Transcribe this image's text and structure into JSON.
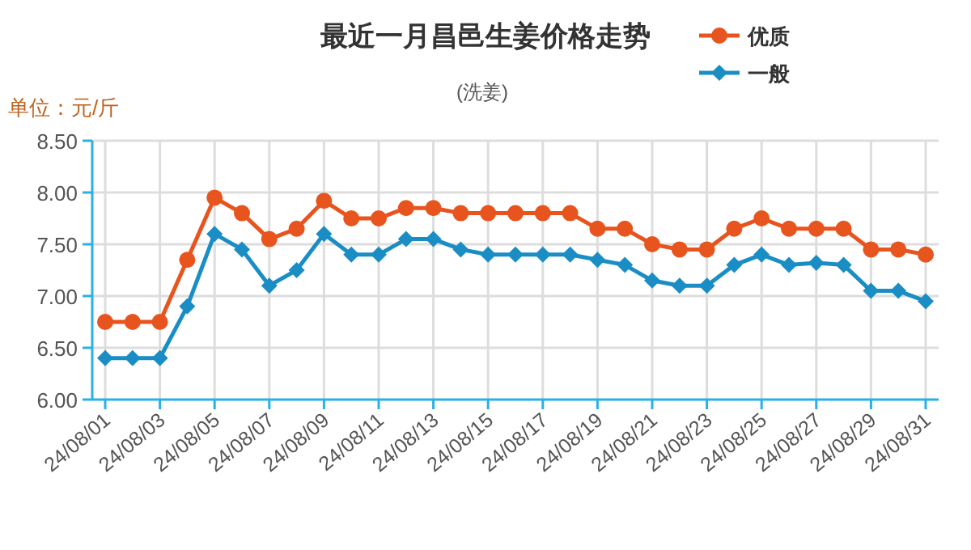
{
  "chart_data": {
    "type": "line",
    "title": "最近一月昌邑生姜价格走势",
    "subtitle": "(洗姜)",
    "ylabel": "单位：元/斤",
    "categories": [
      "24/08/01",
      null,
      "24/08/03",
      null,
      "24/08/05",
      null,
      "24/08/07",
      null,
      "24/08/09",
      null,
      "24/08/11",
      null,
      "24/08/13",
      null,
      "24/08/15",
      null,
      "24/08/17",
      null,
      "24/08/19",
      null,
      "24/08/21",
      null,
      "24/08/23",
      null,
      "24/08/25",
      null,
      "24/08/27",
      null,
      "24/08/29",
      null,
      "24/08/31"
    ],
    "series": [
      {
        "name": "优质",
        "color": "#e8541e",
        "marker": "circle",
        "values": [
          6.75,
          6.75,
          6.75,
          7.35,
          7.95,
          7.8,
          7.55,
          7.65,
          7.92,
          7.75,
          7.75,
          7.85,
          7.85,
          7.8,
          7.8,
          7.8,
          7.8,
          7.8,
          7.65,
          7.65,
          7.5,
          7.45,
          7.45,
          7.65,
          7.75,
          7.65,
          7.65,
          7.65,
          7.45,
          7.45,
          7.4
        ]
      },
      {
        "name": "一般",
        "color": "#1a8ec4",
        "marker": "diamond",
        "values": [
          6.4,
          6.4,
          6.4,
          6.9,
          7.6,
          7.45,
          7.1,
          7.25,
          7.6,
          7.4,
          7.4,
          7.55,
          7.55,
          7.45,
          7.4,
          7.4,
          7.4,
          7.4,
          7.35,
          7.3,
          7.15,
          7.1,
          7.1,
          7.3,
          7.4,
          7.3,
          7.32,
          7.3,
          7.05,
          7.05,
          6.95
        ]
      }
    ],
    "ylim": [
      6,
      8.5
    ],
    "yticks": [
      {
        "value": 6,
        "label": "6.00"
      },
      {
        "value": 6.5,
        "label": "6.50"
      },
      {
        "value": 7,
        "label": "7.00"
      },
      {
        "value": 7.5,
        "label": "7.50"
      },
      {
        "value": 8,
        "label": "8.00"
      },
      {
        "value": 8.5,
        "label": "8.50"
      }
    ],
    "grid": true,
    "legend": "top right",
    "line_style": "solid"
  }
}
